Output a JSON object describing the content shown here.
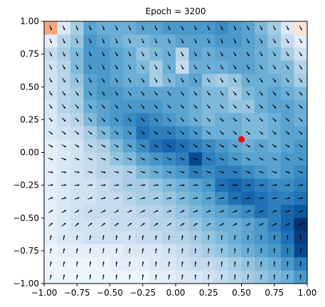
{
  "chart_data": {
    "type": "heatmap",
    "title": "Epoch = 3200",
    "xlabel": "",
    "ylabel": "",
    "xlim": [
      -1.0,
      1.0
    ],
    "ylim": [
      -1.0,
      1.0
    ],
    "xticks": [
      -1.0,
      -0.75,
      -0.5,
      -0.25,
      0.0,
      0.25,
      0.5,
      0.75,
      1.0
    ],
    "yticks": [
      -1.0,
      -0.75,
      -0.5,
      -0.25,
      0.0,
      0.25,
      0.5,
      0.75,
      1.0
    ],
    "xtick_labels": [
      "−1.00",
      "−0.75",
      "−0.50",
      "−0.25",
      "0.00",
      "0.25",
      "0.50",
      "0.75",
      "1.00"
    ],
    "ytick_labels": [
      "−1.00",
      "−0.75",
      "−0.50",
      "−0.25",
      "0.00",
      "0.25",
      "0.50",
      "0.75",
      "1.00"
    ],
    "grid": false,
    "colormap": "Blues with red at top-left and top-right corners",
    "grid_size": 20,
    "cell_size": 0.1,
    "values_row_order": "top-to-bottom",
    "values": [
      [
        1.0,
        0.15,
        0.35,
        0.55,
        0.5,
        0.5,
        0.5,
        0.55,
        0.55,
        0.6,
        0.6,
        0.6,
        0.6,
        0.65,
        0.6,
        0.55,
        0.45,
        0.35,
        0.15,
        0.9
      ],
      [
        0.1,
        0.3,
        0.4,
        0.6,
        0.55,
        0.5,
        0.45,
        0.45,
        0.5,
        0.5,
        0.55,
        0.55,
        0.55,
        0.6,
        0.6,
        0.55,
        0.5,
        0.4,
        0.25,
        0.1
      ],
      [
        0.25,
        0.35,
        0.45,
        0.6,
        0.6,
        0.55,
        0.5,
        0.4,
        0.45,
        0.5,
        0.3,
        0.55,
        0.5,
        0.55,
        0.55,
        0.55,
        0.5,
        0.45,
        0.35,
        0.2
      ],
      [
        0.2,
        0.3,
        0.45,
        0.6,
        0.6,
        0.55,
        0.5,
        0.45,
        0.35,
        0.5,
        0.25,
        0.5,
        0.5,
        0.5,
        0.55,
        0.55,
        0.5,
        0.45,
        0.45,
        0.3
      ],
      [
        0.2,
        0.3,
        0.4,
        0.55,
        0.6,
        0.55,
        0.5,
        0.5,
        0.35,
        0.45,
        0.5,
        0.55,
        0.4,
        0.35,
        0.4,
        0.5,
        0.5,
        0.5,
        0.45,
        0.35
      ],
      [
        0.2,
        0.3,
        0.35,
        0.55,
        0.6,
        0.6,
        0.55,
        0.55,
        0.55,
        0.55,
        0.55,
        0.5,
        0.45,
        0.45,
        0.35,
        0.45,
        0.5,
        0.55,
        0.5,
        0.45
      ],
      [
        0.15,
        0.3,
        0.35,
        0.5,
        0.55,
        0.6,
        0.6,
        0.6,
        0.6,
        0.55,
        0.55,
        0.5,
        0.45,
        0.45,
        0.4,
        0.4,
        0.5,
        0.55,
        0.55,
        0.5
      ],
      [
        0.15,
        0.25,
        0.3,
        0.45,
        0.55,
        0.6,
        0.65,
        0.7,
        0.65,
        0.6,
        0.55,
        0.5,
        0.45,
        0.5,
        0.5,
        0.45,
        0.45,
        0.5,
        0.55,
        0.5
      ],
      [
        0.15,
        0.2,
        0.25,
        0.35,
        0.45,
        0.55,
        0.6,
        0.75,
        0.7,
        0.7,
        0.65,
        0.6,
        0.5,
        0.5,
        0.5,
        0.45,
        0.45,
        0.5,
        0.55,
        0.55
      ],
      [
        0.1,
        0.15,
        0.2,
        0.3,
        0.35,
        0.45,
        0.55,
        0.65,
        0.75,
        0.8,
        0.75,
        0.7,
        0.65,
        0.6,
        0.55,
        0.5,
        0.55,
        0.5,
        0.55,
        0.6
      ],
      [
        0.1,
        0.15,
        0.2,
        0.25,
        0.3,
        0.4,
        0.45,
        0.55,
        0.6,
        0.65,
        0.7,
        0.9,
        0.7,
        0.65,
        0.6,
        0.55,
        0.55,
        0.55,
        0.6,
        0.6
      ],
      [
        0.1,
        0.15,
        0.2,
        0.25,
        0.3,
        0.3,
        0.35,
        0.45,
        0.5,
        0.55,
        0.6,
        0.7,
        0.65,
        0.7,
        0.7,
        0.65,
        0.6,
        0.55,
        0.6,
        0.65
      ],
      [
        0.1,
        0.15,
        0.2,
        0.2,
        0.25,
        0.3,
        0.35,
        0.35,
        0.4,
        0.45,
        0.5,
        0.55,
        0.6,
        0.75,
        0.8,
        0.75,
        0.7,
        0.65,
        0.65,
        0.7
      ],
      [
        0.1,
        0.15,
        0.2,
        0.2,
        0.25,
        0.25,
        0.3,
        0.35,
        0.35,
        0.4,
        0.45,
        0.5,
        0.55,
        0.65,
        0.75,
        0.8,
        0.75,
        0.7,
        0.7,
        0.75
      ],
      [
        0.1,
        0.15,
        0.2,
        0.25,
        0.25,
        0.25,
        0.25,
        0.3,
        0.3,
        0.35,
        0.4,
        0.45,
        0.5,
        0.55,
        0.6,
        0.65,
        0.75,
        0.7,
        0.8,
        0.85
      ],
      [
        0.1,
        0.15,
        0.2,
        0.2,
        0.2,
        0.25,
        0.25,
        0.25,
        0.3,
        0.3,
        0.35,
        0.4,
        0.45,
        0.5,
        0.5,
        0.55,
        0.6,
        0.7,
        0.8,
        1.0
      ],
      [
        0.1,
        0.15,
        0.15,
        0.2,
        0.2,
        0.2,
        0.2,
        0.25,
        0.25,
        0.3,
        0.3,
        0.35,
        0.4,
        0.45,
        0.5,
        0.55,
        0.6,
        0.65,
        0.75,
        0.95
      ],
      [
        0.05,
        0.1,
        0.1,
        0.1,
        0.1,
        0.1,
        0.15,
        0.15,
        0.15,
        0.2,
        0.25,
        0.3,
        0.35,
        0.4,
        0.45,
        0.5,
        0.55,
        0.6,
        0.7,
        0.9
      ],
      [
        0.05,
        0.05,
        0.05,
        0.05,
        0.05,
        0.1,
        0.1,
        0.1,
        0.15,
        0.15,
        0.2,
        0.25,
        0.25,
        0.3,
        0.35,
        0.4,
        0.45,
        0.5,
        0.6,
        0.7
      ],
      [
        0.05,
        0.05,
        0.05,
        0.05,
        0.05,
        0.05,
        0.05,
        0.05,
        0.1,
        0.1,
        0.15,
        0.15,
        0.2,
        0.25,
        0.3,
        0.35,
        0.4,
        0.45,
        0.5,
        0.6
      ]
    ],
    "quiver": {
      "color": "#000000",
      "spacing": 0.1,
      "description": "direction field of small arrows over the whole grid, pointing away from the top-left region toward the lower-right, rotating to point up near the bottom and right near the left edge"
    },
    "marker": {
      "x": 0.5,
      "y": 0.1,
      "color": "#ff0000",
      "shape": "circle"
    },
    "faint_marker": {
      "x": 0.75,
      "y": -0.3,
      "color": "#2a6eb2",
      "shape": "circle"
    }
  }
}
